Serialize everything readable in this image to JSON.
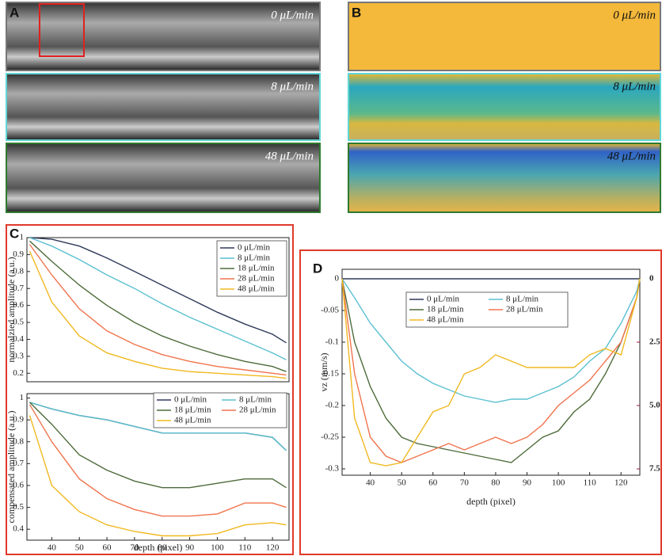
{
  "image_panels": [
    {
      "letter": "A",
      "rows": [
        "0 μL/min",
        "8 μL/min",
        "48 μL/min"
      ]
    },
    {
      "letter": "B",
      "rows": [
        "0 μL/min",
        "8 μL/min",
        "48 μL/min"
      ]
    }
  ],
  "chart_data": [
    {
      "type": "line",
      "panel": "C",
      "y_label": "normalzied amplitude (a.u.)",
      "x": [
        32,
        40,
        50,
        60,
        70,
        80,
        90,
        100,
        110,
        120,
        125
      ],
      "xlim": [
        31,
        126
      ],
      "ylim": [
        0.15,
        1.0
      ],
      "yticks": [
        0.2,
        0.3,
        0.4,
        0.5,
        0.6,
        0.7,
        0.8,
        0.9,
        1
      ],
      "legend": "upper right",
      "legend_columns": 1,
      "series": [
        {
          "name": "0 μL/min",
          "color": "#2f3a5a",
          "values": [
            1,
            0.99,
            0.95,
            0.88,
            0.8,
            0.72,
            0.64,
            0.56,
            0.49,
            0.43,
            0.38
          ]
        },
        {
          "name": "8 μL/min",
          "color": "#5bc0d0",
          "values": [
            1,
            0.95,
            0.87,
            0.78,
            0.7,
            0.61,
            0.53,
            0.46,
            0.39,
            0.32,
            0.28
          ]
        },
        {
          "name": "18 μL/min",
          "color": "#4d6b3a",
          "values": [
            0.98,
            0.86,
            0.72,
            0.6,
            0.5,
            0.42,
            0.36,
            0.31,
            0.27,
            0.24,
            0.21
          ]
        },
        {
          "name": "28 μL/min",
          "color": "#f0744e",
          "values": [
            0.96,
            0.78,
            0.58,
            0.45,
            0.37,
            0.31,
            0.27,
            0.24,
            0.22,
            0.2,
            0.19
          ]
        },
        {
          "name": "48 μL/min",
          "color": "#f0b820",
          "values": [
            0.92,
            0.62,
            0.42,
            0.32,
            0.27,
            0.23,
            0.21,
            0.2,
            0.19,
            0.18,
            0.17
          ]
        }
      ]
    },
    {
      "type": "line",
      "x_label": "depth (pixel)",
      "y_label": "compensated amplitude (a.u.)",
      "x": [
        32,
        40,
        50,
        60,
        70,
        80,
        90,
        100,
        110,
        120,
        125
      ],
      "xlim": [
        31,
        126
      ],
      "xticks": [
        40,
        50,
        60,
        70,
        80,
        90,
        100,
        110,
        120
      ],
      "ylim": [
        0.35,
        1.02
      ],
      "yticks": [
        0.4,
        0.5,
        0.6,
        0.7,
        0.8,
        0.9,
        1
      ],
      "legend": "upper right",
      "legend_columns": 2,
      "series": [
        {
          "name": "0 μL/min",
          "color": "#2f3a5a",
          "values": [
            0.98,
            0.95,
            0.92,
            0.9,
            0.87,
            0.84,
            0.84,
            0.84,
            0.84,
            0.82,
            0.76
          ]
        },
        {
          "name": "8 μL/min",
          "color": "#5bc0d0",
          "values": [
            0.98,
            0.95,
            0.92,
            0.9,
            0.87,
            0.84,
            0.84,
            0.84,
            0.84,
            0.82,
            0.76
          ]
        },
        {
          "name": "18 μL/min",
          "color": "#4d6b3a",
          "values": [
            0.98,
            0.88,
            0.74,
            0.67,
            0.62,
            0.59,
            0.59,
            0.61,
            0.63,
            0.63,
            0.59
          ]
        },
        {
          "name": "28 μL/min",
          "color": "#f0744e",
          "values": [
            0.97,
            0.8,
            0.63,
            0.54,
            0.49,
            0.46,
            0.46,
            0.47,
            0.52,
            0.52,
            0.5
          ]
        },
        {
          "name": "48 μL/min",
          "color": "#f0b820",
          "values": [
            0.92,
            0.6,
            0.48,
            0.42,
            0.39,
            0.37,
            0.37,
            0.38,
            0.42,
            0.43,
            0.42
          ]
        }
      ]
    },
    {
      "type": "line",
      "panel": "D",
      "x_label": "depth (pixel)",
      "y_label": "vz (mm/s)",
      "x": [
        31,
        35,
        40,
        45,
        50,
        55,
        60,
        65,
        70,
        75,
        80,
        85,
        90,
        95,
        100,
        105,
        110,
        115,
        120,
        125,
        126
      ],
      "xlim": [
        31,
        126
      ],
      "xticks": [
        40,
        50,
        60,
        70,
        80,
        90,
        100,
        110,
        120
      ],
      "ylim": [
        -0.31,
        0.015
      ],
      "yticks": [
        -0.3,
        -0.25,
        -0.2,
        -0.15,
        -0.1,
        -0.05,
        0
      ],
      "y2lim": [
        7.75,
        -0.375
      ],
      "y2ticks": [
        0,
        2.5,
        {
          "value": 5,
          "label": "5.0"
        },
        7.5
      ],
      "legend": "upper center",
      "legend_columns": 2,
      "series": [
        {
          "name": "0 μL/min",
          "color": "#2f3a5a",
          "values": [
            0,
            0,
            0,
            0,
            0,
            0,
            0,
            0,
            0,
            0,
            0,
            0,
            0,
            0,
            0,
            0,
            0,
            0,
            0,
            0,
            0
          ]
        },
        {
          "name": "8 μL/min",
          "color": "#5bc0d0",
          "values": [
            0,
            -0.03,
            -0.07,
            -0.1,
            -0.13,
            -0.15,
            -0.165,
            -0.175,
            -0.185,
            -0.19,
            -0.195,
            -0.19,
            -0.19,
            -0.18,
            -0.17,
            -0.155,
            -0.13,
            -0.11,
            -0.07,
            -0.02,
            0
          ]
        },
        {
          "name": "18 μL/min",
          "color": "#4d6b3a",
          "values": [
            0,
            -0.1,
            -0.17,
            -0.22,
            -0.25,
            -0.26,
            -0.265,
            -0.27,
            -0.275,
            -0.28,
            -0.285,
            -0.29,
            -0.27,
            -0.25,
            -0.24,
            -0.21,
            -0.19,
            -0.15,
            -0.1,
            -0.03,
            0
          ]
        },
        {
          "name": "28 μL/min",
          "color": "#f0744e",
          "values": [
            0,
            -0.15,
            -0.25,
            -0.28,
            -0.29,
            -0.28,
            -0.27,
            -0.26,
            -0.27,
            -0.26,
            -0.25,
            -0.26,
            -0.25,
            -0.23,
            -0.2,
            -0.18,
            -0.16,
            -0.13,
            -0.1,
            -0.03,
            0
          ]
        },
        {
          "name": "48 μL/min",
          "color": "#f0b820",
          "values": [
            0,
            -0.22,
            -0.29,
            -0.295,
            -0.29,
            -0.25,
            -0.21,
            -0.2,
            -0.15,
            -0.14,
            -0.12,
            -0.13,
            -0.14,
            -0.14,
            -0.14,
            -0.14,
            -0.12,
            -0.11,
            -0.12,
            -0.03,
            0
          ]
        }
      ]
    }
  ]
}
